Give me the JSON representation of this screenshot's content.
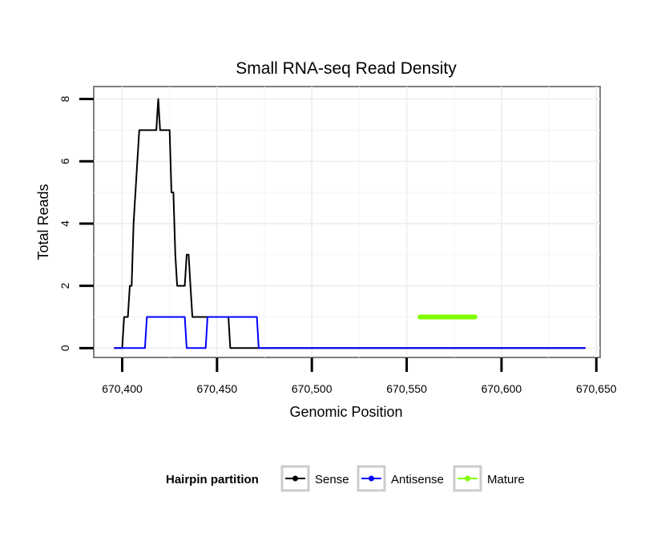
{
  "chart_data": {
    "type": "line",
    "title": "Small RNA-seq Read Density",
    "xlabel": "Genomic Position",
    "ylabel": "Total Reads",
    "xlim": [
      670385,
      670652
    ],
    "ylim": [
      -0.3,
      8.4
    ],
    "xticks": [
      670400,
      670450,
      670500,
      670550,
      670600,
      670650
    ],
    "xtick_labels": [
      "670,400",
      "670,450",
      "670,500",
      "670,550",
      "670,600",
      "670,650"
    ],
    "yticks": [
      0,
      2,
      4,
      6,
      8
    ],
    "ytick_labels": [
      "0",
      "2",
      "4",
      "6",
      "8"
    ],
    "grid": true,
    "legend": {
      "title": "Hairpin partition",
      "position": "bottom"
    },
    "series": [
      {
        "name": "Sense",
        "color": "#000000",
        "x": [
          670396,
          670400,
          670401,
          670403,
          670404,
          670405,
          670406,
          670408,
          670409,
          670410,
          670418,
          670419,
          670420,
          670421,
          670425,
          670426,
          670427,
          670428,
          670429,
          670430,
          670433,
          670434,
          670435,
          670436,
          670437,
          670438,
          670456,
          670457,
          670644
        ],
        "y": [
          0,
          0,
          1,
          1,
          2,
          2,
          4,
          6,
          7,
          7,
          7,
          8,
          7,
          7,
          7,
          5,
          5,
          3,
          2,
          2,
          2,
          3,
          3,
          2,
          1,
          1,
          1,
          0,
          0
        ]
      },
      {
        "name": "Antisense",
        "color": "#0000ff",
        "x": [
          670396,
          670412,
          670413,
          670433,
          670434,
          670444,
          670445,
          670471,
          670472,
          670644
        ],
        "y": [
          0,
          0,
          1,
          1,
          0,
          0,
          1,
          1,
          0,
          0
        ]
      },
      {
        "name": "Mature",
        "color": "#7fff00",
        "x": [
          670557,
          670586
        ],
        "y": [
          1,
          1
        ]
      }
    ]
  }
}
